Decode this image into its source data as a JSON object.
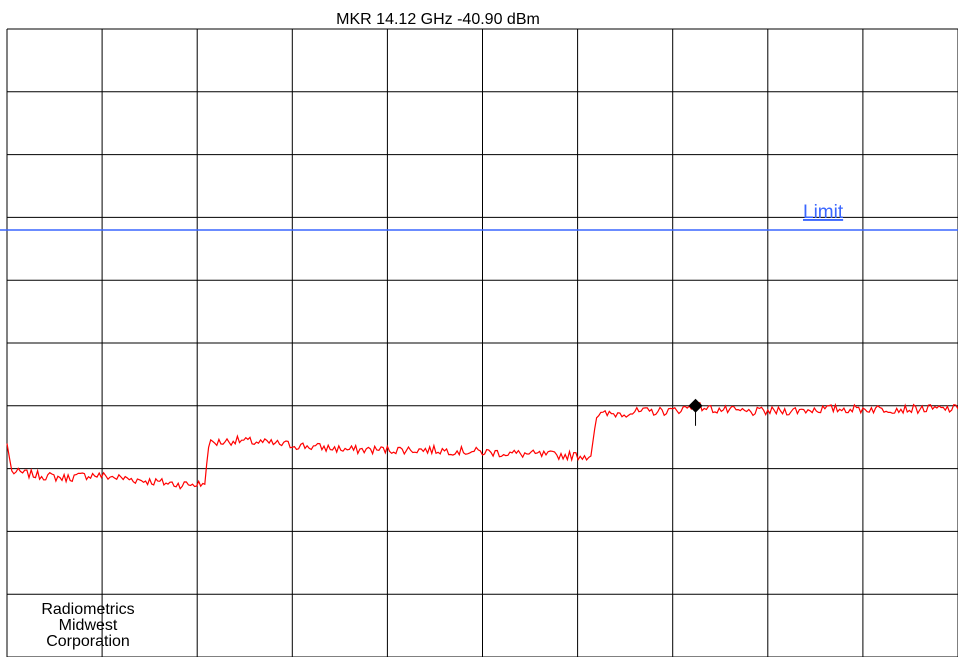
{
  "marker": {
    "readout": "MKR 14.12 GHz  -40.90 dBm",
    "frequency_ghz": 14.12,
    "level_dbm": -40.9
  },
  "limit": {
    "label": "Limit"
  },
  "company": {
    "line1": "Radiometrics",
    "line2": "Midwest",
    "line3": "Corporation"
  },
  "colors": {
    "trace": "#ff0000",
    "limit": "#3a66ff",
    "grid": "#000000",
    "marker": "#000000"
  },
  "chart_data": {
    "type": "line",
    "grid": true,
    "grid_divisions": {
      "x": 10,
      "y": 10
    },
    "y_axis_normalized": [
      0,
      10
    ],
    "x_axis_normalized": [
      0,
      10
    ],
    "limit_level_div": 6.8,
    "marker_position_div": {
      "x": 7.24,
      "y": 4.0
    },
    "series": [
      {
        "values_div": [
          [
            0.0,
            3.4
          ],
          [
            0.05,
            2.95
          ],
          [
            0.3,
            2.9
          ],
          [
            0.6,
            2.85
          ],
          [
            0.9,
            2.9
          ],
          [
            1.2,
            2.85
          ],
          [
            1.5,
            2.8
          ],
          [
            1.8,
            2.75
          ],
          [
            2.08,
            2.75
          ],
          [
            2.12,
            3.4
          ],
          [
            2.4,
            3.45
          ],
          [
            2.8,
            3.4
          ],
          [
            3.2,
            3.35
          ],
          [
            3.6,
            3.3
          ],
          [
            4.0,
            3.3
          ],
          [
            4.4,
            3.3
          ],
          [
            4.8,
            3.28
          ],
          [
            5.2,
            3.25
          ],
          [
            5.6,
            3.22
          ],
          [
            6.14,
            3.2
          ],
          [
            6.2,
            3.85
          ],
          [
            6.6,
            3.9
          ],
          [
            7.0,
            3.92
          ],
          [
            7.24,
            4.0
          ],
          [
            7.4,
            3.95
          ],
          [
            7.8,
            3.9
          ],
          [
            8.2,
            3.92
          ],
          [
            8.6,
            3.95
          ],
          [
            9.0,
            3.95
          ],
          [
            9.4,
            3.95
          ],
          [
            10.0,
            3.95
          ]
        ]
      }
    ]
  }
}
